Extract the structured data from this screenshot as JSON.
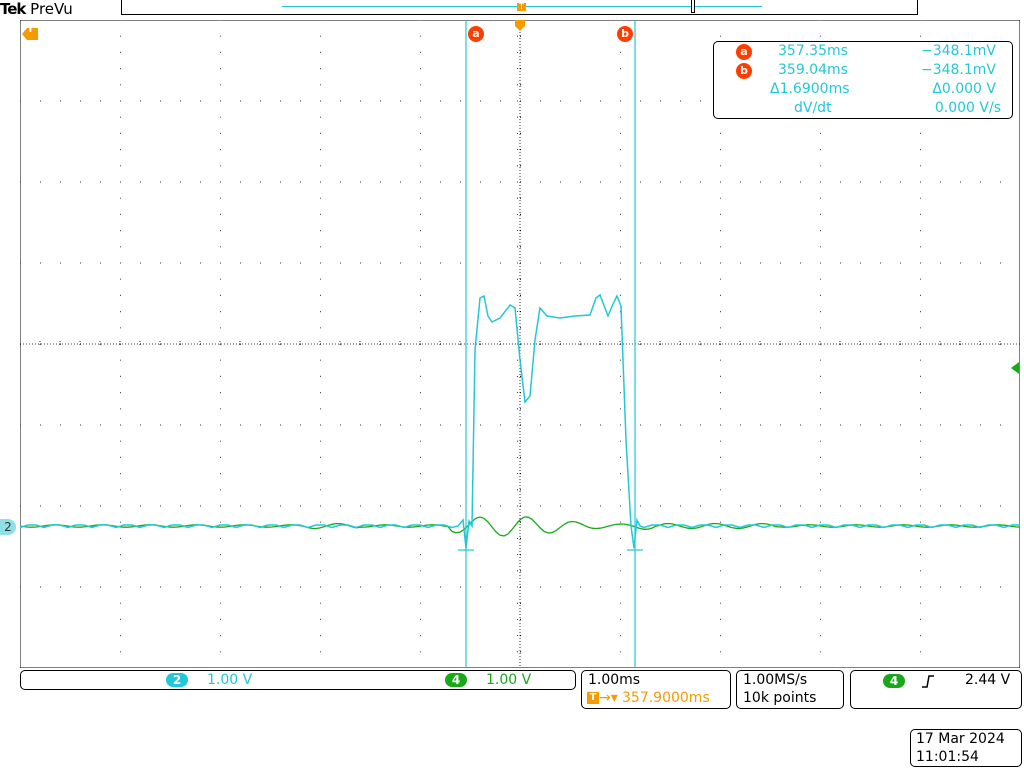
{
  "brand": {
    "name": "Tek",
    "mode": "PreVu"
  },
  "colors": {
    "ch2": "#22c8d6",
    "ch4": "#1aa81a",
    "trigger": "#f59b00",
    "cursor_badge": "#ff3d00",
    "grid": "#000000"
  },
  "trigger_marker": {
    "label": "T"
  },
  "cursors": {
    "a": {
      "label": "a",
      "time": "357.35ms",
      "value": "−348.1mV"
    },
    "b": {
      "label": "b",
      "time": "359.04ms",
      "value": "−348.1mV"
    },
    "delta": {
      "time": "Δ1.6900ms",
      "value": "Δ0.000 V"
    },
    "slope": {
      "label": "dV/dt",
      "value": "0.000 V/s"
    }
  },
  "channel_markers": {
    "ch2": "2"
  },
  "bottom": {
    "ch2": {
      "number": "2",
      "scale": "1.00 V"
    },
    "ch4": {
      "number": "4",
      "scale": "1.00 V"
    },
    "horizontal": {
      "scale": "1.00ms",
      "position": "357.9000ms"
    },
    "acquisition": {
      "rate": "1.00MS/s",
      "points": "10k points"
    },
    "trigger": {
      "source": "4",
      "slope_icon": "rising-edge-icon",
      "level": "2.44 V"
    },
    "date": "17 Mar  2024",
    "time": "11:01:54"
  }
}
